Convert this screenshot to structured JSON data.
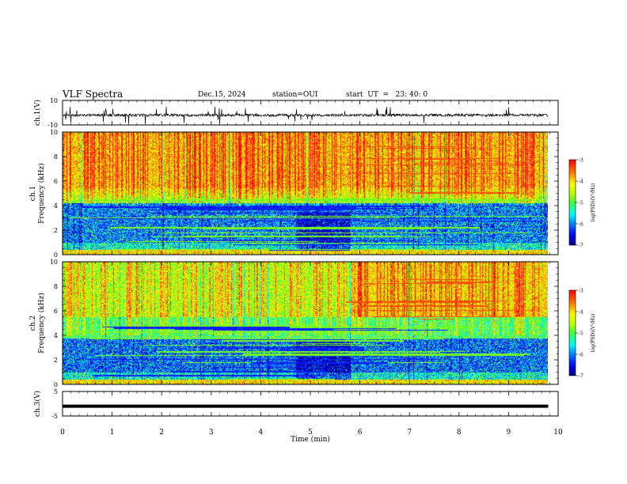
{
  "header": {
    "title": "VLF Spectra",
    "date": "Dec.15, 2024",
    "station": "station=OUI",
    "start": "start  UT  =   23: 40: 0"
  },
  "chart_data": [
    {
      "type": "line",
      "name": "ch1-waveform",
      "ylabel": "ch.1(V)",
      "ylim": [
        -10,
        10
      ],
      "yticks": [
        "10",
        "-10"
      ],
      "baseline": -2,
      "noise_range": [
        -4,
        1
      ]
    },
    {
      "type": "heatmap",
      "name": "ch1-spectrogram",
      "ylabel_lines": [
        "ch.1",
        "Frequency  (kHz)"
      ],
      "xlim": [
        0,
        10
      ],
      "data_xmax": 9.8,
      "ylim": [
        0,
        10
      ],
      "yticks": [
        "0",
        "2",
        "4",
        "6",
        "8",
        "10"
      ],
      "colorbar": {
        "label": "log(PSD)(V²/Hz)",
        "range": [
          -7,
          -3
        ],
        "ticks": [
          "-3",
          "-4",
          "-5",
          "-6",
          "-7"
        ]
      }
    },
    {
      "type": "heatmap",
      "name": "ch2-spectrogram",
      "ylabel_lines": [
        "ch.2",
        "Frequency  (kHz)"
      ],
      "xlim": [
        0,
        10
      ],
      "data_xmax": 9.8,
      "ylim": [
        0,
        10
      ],
      "yticks": [
        "0",
        "2",
        "4",
        "6",
        "8",
        "10"
      ],
      "colorbar": {
        "label": "log(PSD)(V²/Hz)",
        "range": [
          -7,
          -3
        ],
        "ticks": [
          "-3",
          "-4",
          "-5",
          "-6",
          "-7"
        ]
      }
    },
    {
      "type": "line",
      "name": "ch3-waveform",
      "ylabel": "ch.3(V)",
      "ylim": [
        -5,
        5
      ],
      "yticks": [
        "5",
        "-5"
      ],
      "level": -1
    }
  ],
  "xaxis": {
    "label": "Time  (min)",
    "ticks": [
      "0",
      "1",
      "2",
      "3",
      "4",
      "5",
      "6",
      "7",
      "8",
      "9",
      "10"
    ]
  }
}
